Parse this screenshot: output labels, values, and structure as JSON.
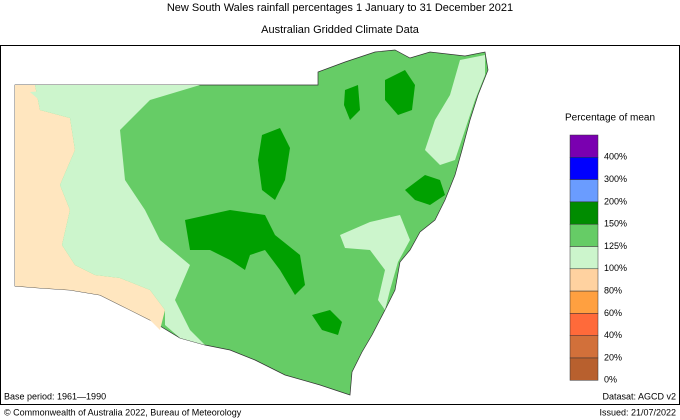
{
  "header": {
    "title": "New South Wales rainfall percentages    1 January to 31 December 2021",
    "subtitle": "Australian Gridded Climate Data"
  },
  "legend": {
    "title": "Percentage of mean",
    "items": [
      {
        "label": "400%",
        "color": "#7a00b0"
      },
      {
        "label": "300%",
        "color": "#0000ff"
      },
      {
        "label": "200%",
        "color": "#6a9cff"
      },
      {
        "label": "150%",
        "color": "#008c00"
      },
      {
        "label": "125%",
        "color": "#66cc66"
      },
      {
        "label": "100%",
        "color": "#ccf5cc"
      },
      {
        "label": "80%",
        "color": "#ffd2a0"
      },
      {
        "label": "60%",
        "color": "#ffa040"
      },
      {
        "label": "40%",
        "color": "#ff6a3a"
      },
      {
        "label": "20%",
        "color": "#d2703a"
      },
      {
        "label": "0%",
        "color": "#b8602e"
      }
    ]
  },
  "footer": {
    "base_period": "Base period: 1961—1990",
    "dataset": "Datasat: AGCD v2",
    "copyright": "© Commonwealth of Australia 2022, Bureau of Meteorology",
    "issued": "Issued: 21/07/2022"
  }
}
